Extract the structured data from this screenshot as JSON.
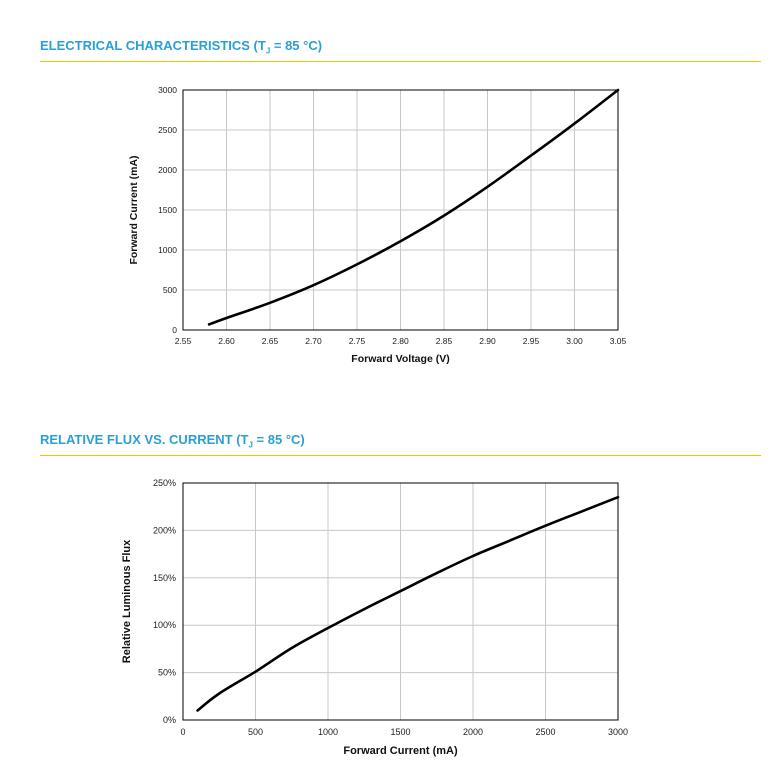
{
  "chart_data": [
    {
      "type": "line",
      "title_prefix": "ELECTRICAL CHARACTERISTICS (T",
      "title_sub": "J",
      "title_suffix": " = 85 °C)",
      "xlabel": "Forward Voltage (V)",
      "ylabel": "Forward Current (mA)",
      "xlim": [
        2.55,
        3.05
      ],
      "ylim": [
        0,
        3000
      ],
      "xticks": [
        "2.55",
        "2.60",
        "2.65",
        "2.70",
        "2.75",
        "2.80",
        "2.85",
        "2.90",
        "2.95",
        "3.00",
        "3.05"
      ],
      "yticks": [
        "0",
        "500",
        "1000",
        "1500",
        "2000",
        "2500",
        "3000"
      ],
      "grid": true,
      "series": [
        {
          "x": [
            2.58,
            2.6,
            2.65,
            2.7,
            2.75,
            2.8,
            2.85,
            2.9,
            2.95,
            3.0,
            3.05
          ],
          "y": [
            70,
            150,
            340,
            560,
            820,
            1110,
            1430,
            1790,
            2180,
            2580,
            3000
          ]
        }
      ]
    },
    {
      "type": "line",
      "title_prefix": "RELATIVE FLUX VS. CURRENT (T",
      "title_sub": "J",
      "title_suffix": " = 85 °C)",
      "xlabel": "Forward Current (mA)",
      "ylabel": "Relative Luminous Flux",
      "xlim": [
        0,
        3000
      ],
      "ylim": [
        0,
        250
      ],
      "xticks": [
        "0",
        "500",
        "1000",
        "1500",
        "2000",
        "2500",
        "3000"
      ],
      "yticks": [
        "0%",
        "50%",
        "100%",
        "150%",
        "200%",
        "250%"
      ],
      "grid": true,
      "series": [
        {
          "x": [
            100,
            250,
            500,
            750,
            1000,
            1250,
            1500,
            1750,
            2000,
            2250,
            2500,
            2750,
            3000
          ],
          "y": [
            10,
            28,
            51,
            76,
            97,
            117,
            136,
            155,
            173,
            189,
            205,
            220,
            235
          ]
        }
      ]
    }
  ]
}
